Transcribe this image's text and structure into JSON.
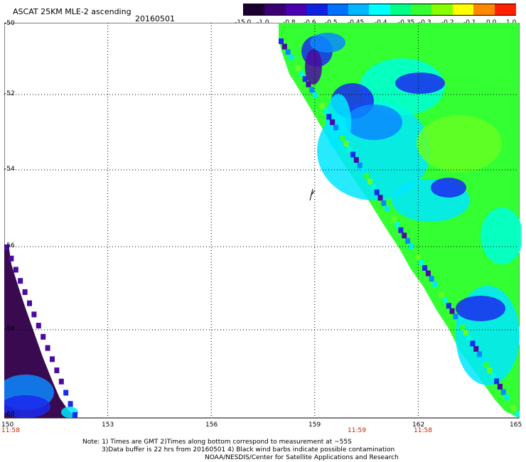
{
  "header": {
    "title": "ASCAT 25KM MLE-2 ascending",
    "date": "20160501"
  },
  "colorbar": {
    "ticks": [
      "-15.0",
      "-1.0",
      "-0.8",
      "-0.6",
      "-0.5",
      "-0.45",
      "-0.4",
      "-0.35",
      "-0.3",
      "-0.2",
      "-0.1",
      "0.0",
      "1.0"
    ],
    "colors": [
      "#1a0030",
      "#3a0070",
      "#4a00b0",
      "#1020e0",
      "#0070ff",
      "#00b8ff",
      "#00ffff",
      "#00ff88",
      "#33ff33",
      "#88ff00",
      "#ffff00",
      "#ff8800",
      "#ff2000"
    ]
  },
  "map": {
    "lat_labels": [
      "-50",
      "-52",
      "-54",
      "-56",
      "-58",
      "-60"
    ],
    "lon_labels": [
      "150",
      "153",
      "156",
      "159",
      "162",
      "165"
    ],
    "times": [
      "11:58",
      "11:59",
      "11:58"
    ],
    "series_colors": {
      "dark_purple": "#3a0a50",
      "purple": "#4b0aa0",
      "blue": "#1a2aee",
      "light_blue": "#0a88ff",
      "cyan": "#00e8ff",
      "aqua": "#00ffd8",
      "green": "#33ff33",
      "lime": "#66ff22"
    }
  },
  "notes": {
    "line1": "Note: 1) Times are GMT 2)Times along bottom correspond to measurement at ~55S",
    "line2": "3)Data buffer is 22 hrs from 20160501 4) Black wind barbs indicate possible contamination",
    "line3": "NOAA/NESDIS/Center for Satellite Applications and Research"
  }
}
